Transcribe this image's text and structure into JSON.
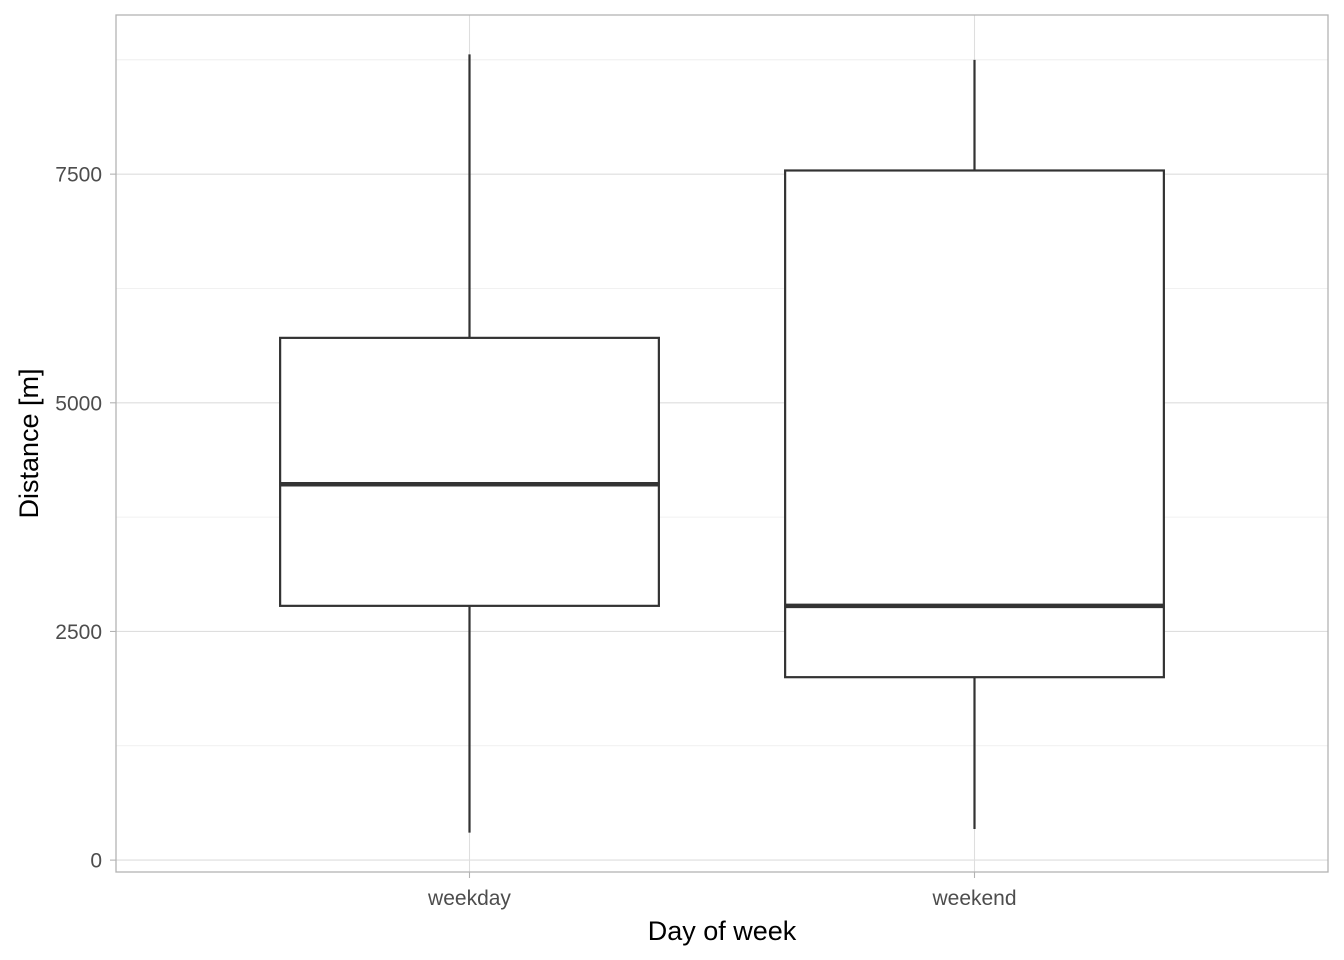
{
  "chart_data": {
    "type": "boxplot",
    "title": "",
    "xlabel": "Day of week",
    "ylabel": "Distance [m]",
    "categories": [
      "weekday",
      "weekend"
    ],
    "boxes": [
      {
        "category": "weekday",
        "min": 300,
        "q1": 2780,
        "median": 4110,
        "q3": 5710,
        "max": 8810
      },
      {
        "category": "weekend",
        "min": 340,
        "q1": 2000,
        "median": 2780,
        "q3": 7540,
        "max": 8750
      }
    ],
    "ylim": [
      -130,
      9240
    ],
    "yticks": [
      0,
      2500,
      5000,
      7500
    ],
    "ytick_labels": [
      "0",
      "2500",
      "5000",
      "7500"
    ],
    "grid": true,
    "legend": "none",
    "colors": {
      "box_fill": "#ffffff",
      "box_line": "#333333",
      "grid": "#dedede",
      "panel_border": "#b3b3b3"
    }
  }
}
